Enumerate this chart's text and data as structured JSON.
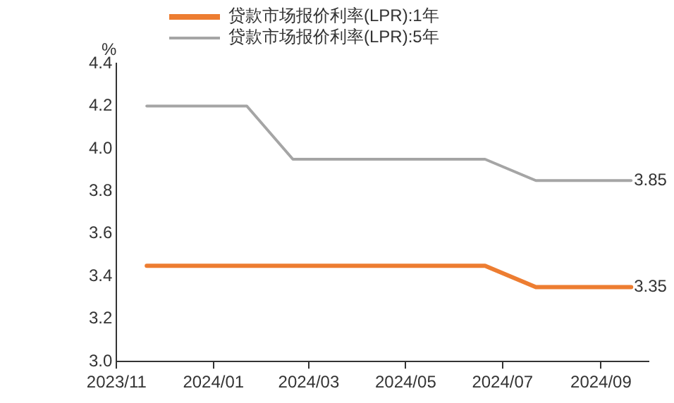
{
  "chart_data": {
    "type": "line",
    "ylabel": "%",
    "legend": "top",
    "x": [
      "2023-11-20",
      "2023-12-20",
      "2024-01-22",
      "2024-02-20",
      "2024-03-20",
      "2024-04-22",
      "2024-05-20",
      "2024-06-20",
      "2024-07-22",
      "2024-08-20",
      "2024-09-20"
    ],
    "series": [
      {
        "name": "贷款市场报价利率(LPR):1年",
        "color": "#ed7d31",
        "values": [
          3.45,
          3.45,
          3.45,
          3.45,
          3.45,
          3.45,
          3.45,
          3.45,
          3.35,
          3.35,
          3.35
        ],
        "value_labels": [
          null,
          null,
          null,
          null,
          null,
          null,
          null,
          null,
          null,
          null,
          "3.35"
        ]
      },
      {
        "name": "贷款市场报价利率(LPR):5年",
        "color": "#a5a5a5",
        "values": [
          4.2,
          4.2,
          4.2,
          3.95,
          3.95,
          3.95,
          3.95,
          3.95,
          3.85,
          3.85,
          3.85
        ],
        "value_labels": [
          null,
          null,
          null,
          null,
          null,
          null,
          null,
          null,
          null,
          null,
          "3.85"
        ]
      }
    ],
    "xlim": [
      "2023-11",
      "2024-10"
    ],
    "xticks": [
      {
        "value": "2023-11",
        "label": "2023/11"
      },
      {
        "value": "2024-01",
        "label": "2024/01"
      },
      {
        "value": "2024-03",
        "label": "2024/03"
      },
      {
        "value": "2024-05",
        "label": "2024/05"
      },
      {
        "value": "2024-07",
        "label": "2024/07"
      },
      {
        "value": "2024-09",
        "label": "2024/09"
      }
    ],
    "ylim": [
      3.0,
      4.4
    ],
    "yticks": [
      {
        "value": 3.0,
        "label": "3.0"
      },
      {
        "value": 3.2,
        "label": "3.2"
      },
      {
        "value": 3.4,
        "label": "3.4"
      },
      {
        "value": 3.6,
        "label": "3.6"
      },
      {
        "value": 3.8,
        "label": "3.8"
      },
      {
        "value": 4.0,
        "label": "4.0"
      },
      {
        "value": 4.2,
        "label": "4.2"
      },
      {
        "value": 4.4,
        "label": "4.4"
      }
    ],
    "grid": false,
    "marker": "none",
    "line_style": "solid"
  }
}
